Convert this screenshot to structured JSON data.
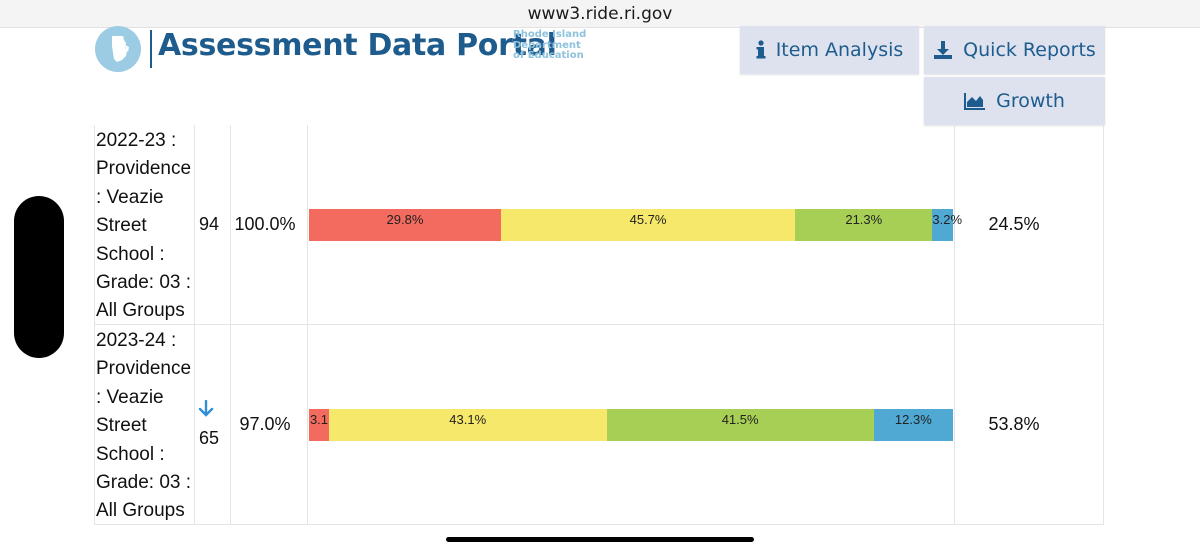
{
  "browser": {
    "url": "www3.ride.ri.gov"
  },
  "header": {
    "title": "Assessment Data Portal",
    "org_lines": [
      "Rhode Island",
      "Department",
      "of Education"
    ]
  },
  "nav": {
    "item_analysis": "Item Analysis",
    "quick_reports": "Quick Reports",
    "growth": "Growth"
  },
  "rows": [
    {
      "label": "2022-23 : Providence : Veazie Street School : Grade: 03 : All Groups",
      "n": "94",
      "participation": "100.0%",
      "segments": [
        {
          "level": "red",
          "value": 29.8,
          "label": "29.8%"
        },
        {
          "level": "yellow",
          "value": 45.7,
          "label": "45.7%"
        },
        {
          "level": "green",
          "value": 21.3,
          "label": "21.3%"
        },
        {
          "level": "blue",
          "value": 3.2,
          "label": "3.2%"
        }
      ],
      "proficient": "24.5%"
    },
    {
      "label": "2023-24 : Providence : Veazie Street School : Grade: 03 : All Groups",
      "n": "65",
      "trend_icon": "arrow-down-icon",
      "participation": "97.0%",
      "segments": [
        {
          "level": "red",
          "value": 3.1,
          "label": "3.1"
        },
        {
          "level": "yellow",
          "value": 43.1,
          "label": "43.1%"
        },
        {
          "level": "green",
          "value": 41.5,
          "label": "41.5%"
        },
        {
          "level": "blue",
          "value": 12.3,
          "label": "12.3%"
        }
      ],
      "proficient": "53.8%"
    }
  ],
  "colors": {
    "red": "#f36a5f",
    "yellow": "#f6e86a",
    "green": "#a8cf55",
    "blue": "#4fa9d3",
    "brand": "#1f5c8e"
  }
}
